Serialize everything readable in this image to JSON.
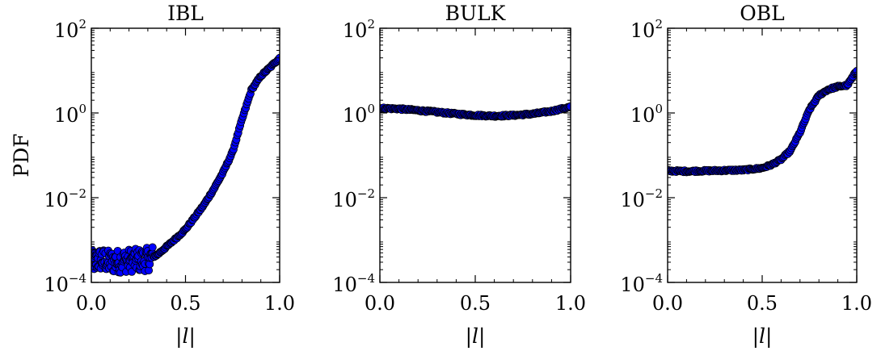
{
  "chart_data": [
    {
      "type": "scatter",
      "title": "IBL",
      "xlabel": "|l|",
      "ylabel": "PDF",
      "xlim": [
        0.0,
        1.0
      ],
      "ylim": [
        0.0001,
        100
      ],
      "yscale": "log",
      "xticks": [
        "0.0",
        "0.5",
        "1.0"
      ],
      "yticks": [
        {
          "base": "10",
          "exp": "2",
          "value": 100
        },
        {
          "base": "10",
          "exp": "0",
          "value": 1
        },
        {
          "base": "10",
          "exp": "−2",
          "value": 0.01
        },
        {
          "base": "10",
          "exp": "−4",
          "value": 0.0001
        }
      ],
      "marker_color": "#0000ff",
      "curve": [
        [
          0.0,
          0.0003
        ],
        [
          0.05,
          0.00035
        ],
        [
          0.1,
          0.0003
        ],
        [
          0.15,
          0.00032
        ],
        [
          0.2,
          0.00033
        ],
        [
          0.25,
          0.00033
        ],
        [
          0.3,
          0.00035
        ],
        [
          0.35,
          0.00045
        ],
        [
          0.4,
          0.0007
        ],
        [
          0.45,
          0.0011
        ],
        [
          0.5,
          0.0018
        ],
        [
          0.55,
          0.0035
        ],
        [
          0.6,
          0.007
        ],
        [
          0.65,
          0.016
        ],
        [
          0.7,
          0.04
        ],
        [
          0.75,
          0.12
        ],
        [
          0.8,
          0.7
        ],
        [
          0.85,
          3.5
        ],
        [
          0.9,
          7.5
        ],
        [
          0.95,
          12
        ],
        [
          1.0,
          20
        ]
      ],
      "noise_until": 0.33
    },
    {
      "type": "scatter",
      "title": "BULK",
      "xlabel": "|l|",
      "ylabel": "",
      "xlim": [
        0.0,
        1.0
      ],
      "ylim": [
        0.0001,
        100
      ],
      "yscale": "log",
      "xticks": [
        "0.0",
        "0.5",
        "1.0"
      ],
      "yticks": [
        {
          "base": "10",
          "exp": "2",
          "value": 100
        },
        {
          "base": "10",
          "exp": "0",
          "value": 1
        },
        {
          "base": "10",
          "exp": "−2",
          "value": 0.01
        },
        {
          "base": "10",
          "exp": "−4",
          "value": 0.0001
        }
      ],
      "marker_color": "#0000ff",
      "curve": [
        [
          0.0,
          1.3
        ],
        [
          0.1,
          1.25
        ],
        [
          0.2,
          1.15
        ],
        [
          0.3,
          1.05
        ],
        [
          0.4,
          0.95
        ],
        [
          0.5,
          0.88
        ],
        [
          0.6,
          0.85
        ],
        [
          0.7,
          0.88
        ],
        [
          0.8,
          0.95
        ],
        [
          0.9,
          1.1
        ],
        [
          1.0,
          1.4
        ]
      ],
      "noise_until": 0
    },
    {
      "type": "scatter",
      "title": "OBL",
      "xlabel": "|l|",
      "ylabel": "",
      "xlim": [
        0.0,
        1.0
      ],
      "ylim": [
        0.0001,
        100
      ],
      "yscale": "log",
      "xticks": [
        "0.0",
        "0.5",
        "1.0"
      ],
      "yticks": [
        {
          "base": "10",
          "exp": "2",
          "value": 100
        },
        {
          "base": "10",
          "exp": "0",
          "value": 1
        },
        {
          "base": "10",
          "exp": "−2",
          "value": 0.01
        },
        {
          "base": "10",
          "exp": "−4",
          "value": 0.0001
        }
      ],
      "marker_color": "#0000ff",
      "curve": [
        [
          0.0,
          0.043
        ],
        [
          0.1,
          0.042
        ],
        [
          0.2,
          0.043
        ],
        [
          0.3,
          0.044
        ],
        [
          0.4,
          0.045
        ],
        [
          0.5,
          0.05
        ],
        [
          0.55,
          0.06
        ],
        [
          0.6,
          0.08
        ],
        [
          0.65,
          0.13
        ],
        [
          0.7,
          0.35
        ],
        [
          0.75,
          1.2
        ],
        [
          0.8,
          2.6
        ],
        [
          0.85,
          3.6
        ],
        [
          0.9,
          4.2
        ],
        [
          0.95,
          4.5
        ],
        [
          1.0,
          10
        ]
      ],
      "noise_until": 0
    }
  ]
}
